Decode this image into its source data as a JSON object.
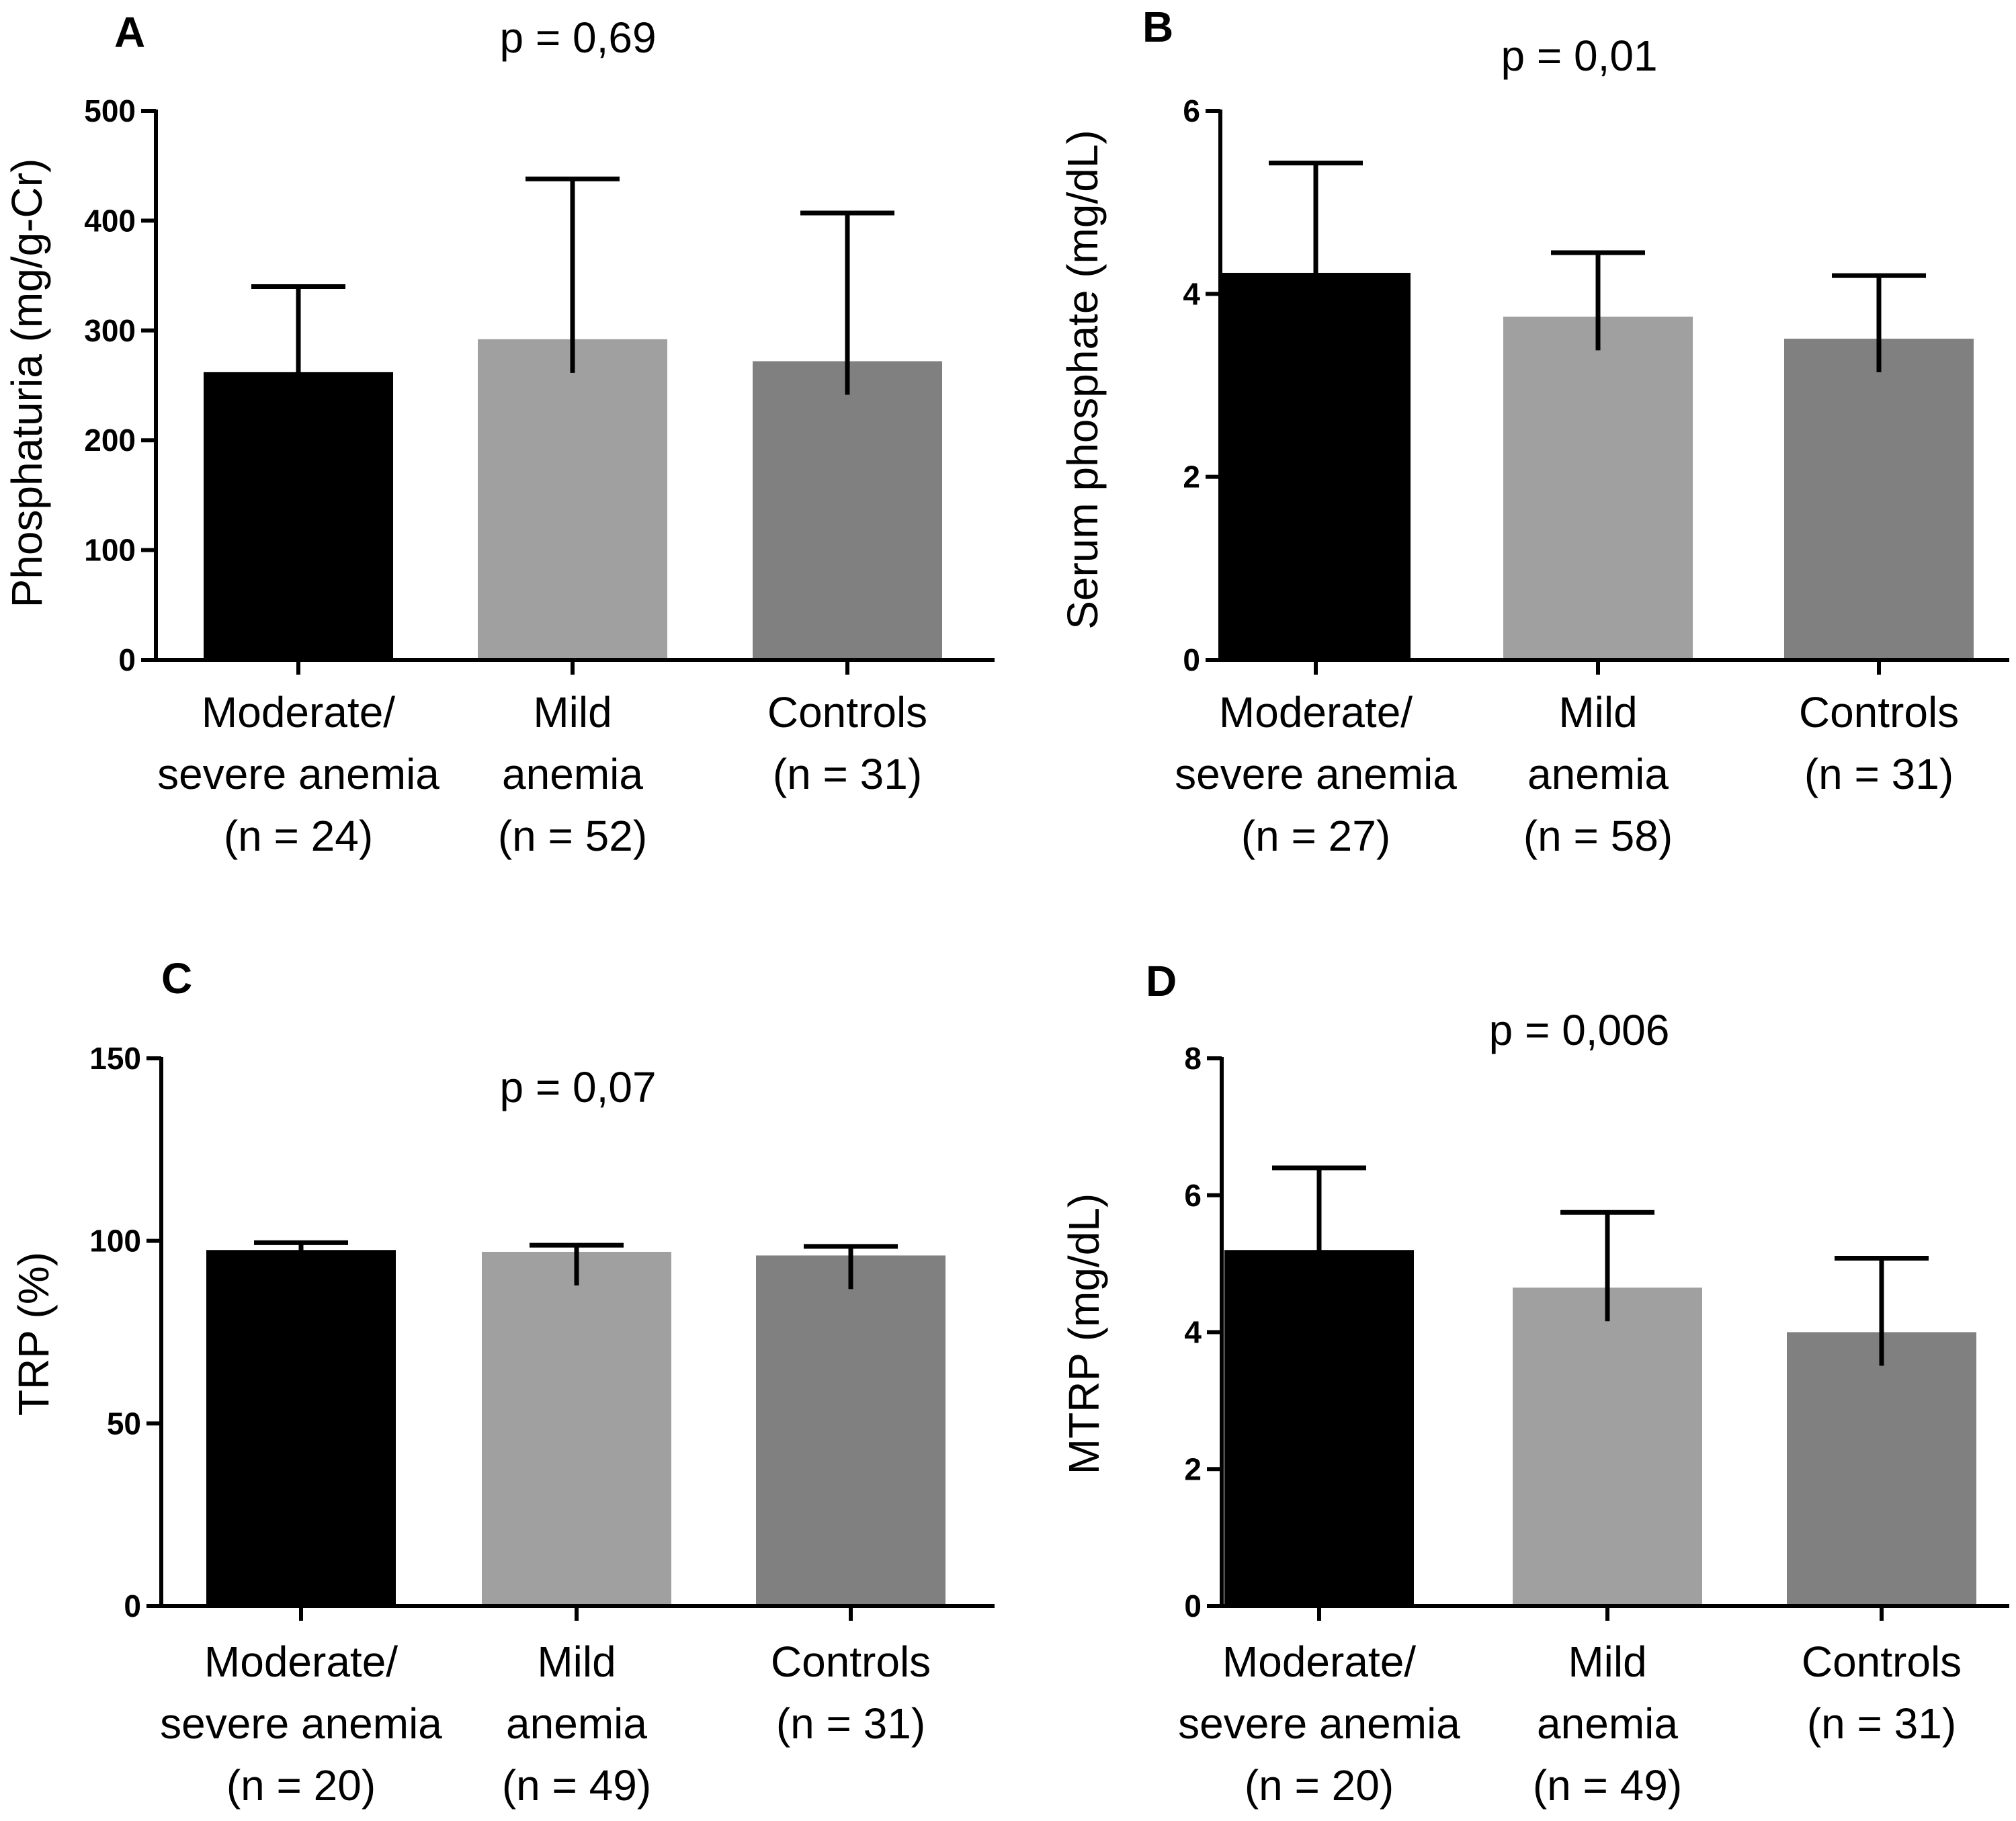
{
  "chart_data": [
    {
      "type": "bar",
      "panel": "A",
      "p_value": "p = 0,69",
      "ylabel": "Phosphaturia (mg/g-Cr)",
      "ylim": [
        0,
        500
      ],
      "yticks": [
        "0",
        "100",
        "200",
        "300",
        "400",
        "500"
      ],
      "categories": [
        [
          "Moderate/",
          "severe anemia",
          "(n = 24)"
        ],
        [
          "Mild",
          "anemia",
          "(n = 52)"
        ],
        [
          "Controls",
          "(n = 31)"
        ]
      ],
      "values": [
        262,
        292,
        272
      ],
      "error_upper": [
        340,
        438,
        407
      ],
      "colors": [
        "#000000",
        "#a0a0a0",
        "#808080"
      ]
    },
    {
      "type": "bar",
      "panel": "B",
      "p_value": "p = 0,01",
      "ylabel": "Serum phosphate (mg/dL)",
      "ylim": [
        0,
        6
      ],
      "yticks": [
        "0",
        "2",
        "4",
        "6"
      ],
      "categories": [
        [
          "Moderate/",
          "severe anemia",
          "(n = 27)"
        ],
        [
          "Mild",
          "anemia",
          "(n = 58)"
        ],
        [
          "Controls",
          "(n = 31)"
        ]
      ],
      "values": [
        4.23,
        3.75,
        3.51
      ],
      "error_upper": [
        5.43,
        4.45,
        4.2
      ],
      "colors": [
        "#000000",
        "#a0a0a0",
        "#808080"
      ]
    },
    {
      "type": "bar",
      "panel": "C",
      "p_value": "p = 0,07",
      "ylabel": "TRP (%)",
      "ylim": [
        0,
        150
      ],
      "yticks": [
        "0",
        "50",
        "100",
        "150"
      ],
      "categories": [
        [
          "Moderate/",
          "severe anemia",
          "(n = 20)"
        ],
        [
          "Mild",
          "anemia",
          "(n = 49)"
        ],
        [
          "Controls",
          "(n = 31)"
        ]
      ],
      "values": [
        97.5,
        97,
        96
      ],
      "error_upper": [
        99.5,
        98.8,
        98.5
      ],
      "colors": [
        "#000000",
        "#a0a0a0",
        "#808080"
      ]
    },
    {
      "type": "bar",
      "panel": "D",
      "p_value": "p = 0,006",
      "ylabel": "MTRP (mg/dL)",
      "ylim": [
        0,
        8
      ],
      "yticks": [
        "0",
        "2",
        "4",
        "6",
        "8"
      ],
      "categories": [
        [
          "Moderate/",
          "severe anemia",
          "(n = 20)"
        ],
        [
          "Mild",
          "anemia",
          "(n = 49)"
        ],
        [
          "Controls",
          "(n = 31)"
        ]
      ],
      "values": [
        5.2,
        4.65,
        4.0
      ],
      "error_upper": [
        6.4,
        5.75,
        5.08
      ],
      "colors": [
        "#000000",
        "#a0a0a0",
        "#808080"
      ]
    }
  ]
}
